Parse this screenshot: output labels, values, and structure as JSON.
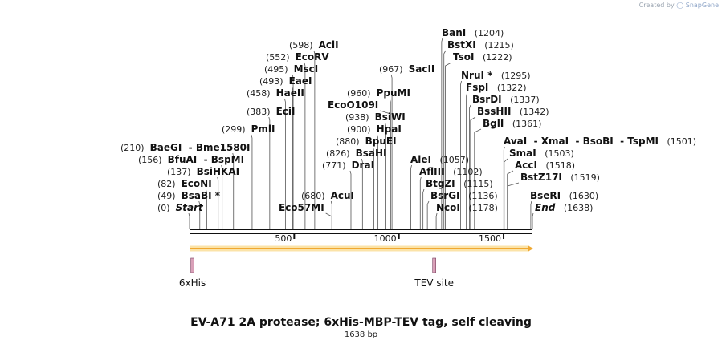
{
  "credit": {
    "prefix": "Created by",
    "brand": "SnapGene"
  },
  "title": "EV-A71 2A protease; 6xHis-MBP-TEV tag, self cleaving",
  "subtitle": "1638 bp",
  "sequence_length": 1638,
  "ruler_ticks": [
    {
      "label": "500",
      "value": 500
    },
    {
      "label": "1000",
      "value": 1000
    },
    {
      "label": "1500",
      "value": 1500
    }
  ],
  "sites_left": [
    {
      "names": [
        "Start"
      ],
      "pos": "(0)",
      "value": 0,
      "italic": true
    },
    {
      "names": [
        "BsaBI *"
      ],
      "pos": "(49)",
      "value": 49
    },
    {
      "names": [
        "EcoNI"
      ],
      "pos": "(82)",
      "value": 82
    },
    {
      "names": [
        "BsiHKAI"
      ],
      "pos": "(137)",
      "value": 137
    },
    {
      "names": [
        "BfuAI",
        "BspMI"
      ],
      "pos": "(156)",
      "value": 156
    },
    {
      "names": [
        "BaeGI",
        "Bme1580I"
      ],
      "pos": "(210)",
      "value": 210
    },
    {
      "names": [
        "PmlI"
      ],
      "pos": "(299)",
      "value": 299
    },
    {
      "names": [
        "EciI"
      ],
      "pos": "(383)",
      "value": 383
    },
    {
      "names": [
        "HaeII"
      ],
      "pos": "(458)",
      "value": 458
    },
    {
      "names": [
        "EaeI"
      ],
      "pos": "(493)",
      "value": 493
    },
    {
      "names": [
        "MscI"
      ],
      "pos": "(495)",
      "value": 495
    },
    {
      "names": [
        "EcoRV"
      ],
      "pos": "(552)",
      "value": 552
    },
    {
      "names": [
        "AclI"
      ],
      "pos": "(598)",
      "value": 598
    },
    {
      "names": [
        "Eco57MI"
      ],
      "pos": "",
      "value": 680
    },
    {
      "names": [
        "AcuI"
      ],
      "pos": "(680)",
      "value": 680
    },
    {
      "names": [
        "DraI"
      ],
      "pos": "(771)",
      "value": 771
    },
    {
      "names": [
        "BsaHI"
      ],
      "pos": "(826)",
      "value": 826
    },
    {
      "names": [
        "BpuEI"
      ],
      "pos": "(880)",
      "value": 880
    },
    {
      "names": [
        "HpaI"
      ],
      "pos": "(900)",
      "value": 900
    },
    {
      "names": [
        "BsiWI"
      ],
      "pos": "(938)",
      "value": 938
    },
    {
      "names": [
        "EcoO109I"
      ],
      "pos": "",
      "value": 960
    },
    {
      "names": [
        "PpuMI"
      ],
      "pos": "(960)",
      "value": 960
    },
    {
      "names": [
        "SacII"
      ],
      "pos": "(967)",
      "value": 967
    }
  ],
  "sites_right": [
    {
      "names": [
        "AleI"
      ],
      "pos": "(1057)",
      "value": 1057
    },
    {
      "names": [
        "AflIII"
      ],
      "pos": "(1102)",
      "value": 1102
    },
    {
      "names": [
        "BtgZI"
      ],
      "pos": "(1115)",
      "value": 1115
    },
    {
      "names": [
        "BsrGI"
      ],
      "pos": "(1136)",
      "value": 1136
    },
    {
      "names": [
        "NcoI"
      ],
      "pos": "(1178)",
      "value": 1178
    },
    {
      "names": [
        "BanI"
      ],
      "pos": "(1204)",
      "value": 1204
    },
    {
      "names": [
        "BstXI"
      ],
      "pos": "(1215)",
      "value": 1215
    },
    {
      "names": [
        "TsoI"
      ],
      "pos": "(1222)",
      "value": 1222
    },
    {
      "names": [
        "NruI *"
      ],
      "pos": "(1295)",
      "value": 1295
    },
    {
      "names": [
        "FspI"
      ],
      "pos": "(1322)",
      "value": 1322
    },
    {
      "names": [
        "BsrDI"
      ],
      "pos": "(1337)",
      "value": 1337
    },
    {
      "names": [
        "BssHII"
      ],
      "pos": "(1342)",
      "value": 1342
    },
    {
      "names": [
        "BglI"
      ],
      "pos": "(1361)",
      "value": 1361
    },
    {
      "names": [
        "AvaI",
        "XmaI",
        "BsoBI",
        "TspMI"
      ],
      "pos": "(1501)",
      "value": 1501
    },
    {
      "names": [
        "SmaI"
      ],
      "pos": "(1503)",
      "value": 1503
    },
    {
      "names": [
        "AccI"
      ],
      "pos": "(1518)",
      "value": 1518
    },
    {
      "names": [
        "BstZ17I"
      ],
      "pos": "(1519)",
      "value": 1519
    },
    {
      "names": [
        "BseRI"
      ],
      "pos": "(1630)",
      "value": 1630
    },
    {
      "names": [
        "End"
      ],
      "pos": "(1638)",
      "value": 1638,
      "italic": true
    }
  ],
  "features": [
    {
      "name": "6xHis",
      "value": 10
    },
    {
      "name": "TEV site",
      "value": 1165
    }
  ],
  "colors": {
    "backbone": "#111111",
    "orf_arrow": "#f0a830",
    "orf_glow": "#fbe3a8",
    "feature_box": "#d9a0b8",
    "feature_border": "#7a4060",
    "leader": "#555555"
  }
}
